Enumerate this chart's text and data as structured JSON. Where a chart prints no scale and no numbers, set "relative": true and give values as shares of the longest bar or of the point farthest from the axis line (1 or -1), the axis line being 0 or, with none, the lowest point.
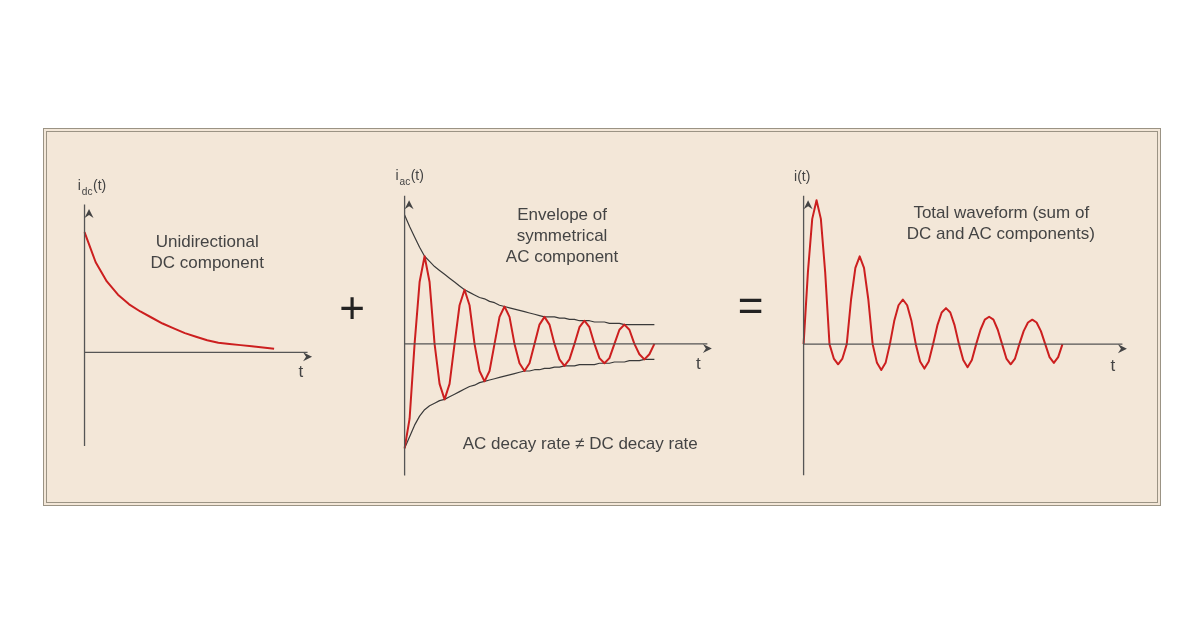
{
  "chart_data": [
    {
      "type": "line",
      "relative": true,
      "xlabel": "t",
      "ylabel": "i$_{dc}$(t)",
      "annotations": [
        "Unidirectional\nDC component",
        "+"
      ],
      "categories": [
        null,
        null,
        null,
        null,
        null,
        null,
        null,
        null,
        null,
        null,
        null,
        null,
        null,
        null,
        null,
        null,
        null,
        null
      ],
      "series": [
        {
          "color": "#cc1f1f",
          "values": [
            1.0,
            0.75,
            0.59,
            0.48,
            0.4,
            0.34,
            0.29,
            0.24,
            0.2,
            0.16,
            0.13,
            0.1,
            0.08,
            0.07,
            0.06,
            0.05,
            0.04,
            0.03
          ]
        }
      ]
    },
    {
      "type": "line",
      "relative": true,
      "xlabel": "t",
      "ylabel": "i$_{ac}$(t)",
      "annotations": [
        "Envelope of\nsymmetrical\nAC component",
        "AC decay rate ≠ DC decay rate"
      ],
      "categories": [
        null,
        null,
        null,
        null,
        null,
        null,
        null,
        null,
        null,
        null,
        null,
        null,
        null,
        null,
        null,
        null,
        null,
        null,
        null,
        null,
        null,
        null,
        null,
        null,
        null,
        null,
        null,
        null,
        null,
        null,
        null,
        null,
        null,
        null,
        null,
        null,
        null,
        null,
        null,
        null,
        null,
        null,
        null,
        null,
        null,
        null,
        null,
        null,
        null,
        null,
        null
      ],
      "series": [
        {
          "color": "#3a3a3a",
          "values": [
            1.0,
            0.91,
            0.83,
            0.75,
            0.68,
            0.64,
            0.6,
            0.57,
            0.54,
            0.51,
            0.48,
            0.45,
            0.42,
            0.4,
            0.38,
            0.36,
            0.35,
            0.33,
            0.32,
            0.3,
            0.29,
            0.28,
            0.27,
            0.26,
            0.25,
            0.24,
            0.23,
            0.22,
            0.21,
            0.21,
            0.21,
            0.2,
            0.2,
            0.19,
            0.19,
            0.18,
            0.18,
            0.18,
            0.17,
            0.17,
            0.17,
            0.16,
            0.16,
            0.16,
            0.15,
            0.15,
            0.15,
            0.15,
            0.15,
            0.15,
            0.15
          ]
        },
        {
          "color": "#3a3a3a",
          "values": [
            -0.81,
            -0.72,
            -0.63,
            -0.56,
            -0.51,
            -0.48,
            -0.46,
            -0.44,
            -0.43,
            -0.41,
            -0.39,
            -0.37,
            -0.35,
            -0.33,
            -0.32,
            -0.3,
            -0.29,
            -0.28,
            -0.27,
            -0.26,
            -0.25,
            -0.24,
            -0.23,
            -0.22,
            -0.21,
            -0.21,
            -0.2,
            -0.2,
            -0.19,
            -0.19,
            -0.18,
            -0.18,
            -0.17,
            -0.17,
            -0.17,
            -0.16,
            -0.16,
            -0.16,
            -0.16,
            -0.15,
            -0.15,
            -0.15,
            -0.14,
            -0.14,
            -0.14,
            -0.13,
            -0.13,
            -0.13,
            -0.12,
            -0.12,
            -0.12
          ]
        },
        {
          "color": "#cc1f1f",
          "values": [
            -0.81,
            -0.58,
            0,
            0.48,
            0.68,
            0.48,
            0,
            -0.31,
            -0.43,
            -0.31,
            0,
            0.3,
            0.42,
            0.3,
            0,
            -0.21,
            -0.29,
            -0.21,
            0,
            0.21,
            0.29,
            0.21,
            0,
            -0.15,
            -0.21,
            -0.15,
            0,
            0.15,
            0.21,
            0.15,
            0,
            -0.12,
            -0.17,
            -0.12,
            0,
            0.13,
            0.18,
            0.13,
            0,
            -0.11,
            -0.15,
            -0.11,
            0,
            0.11,
            0.15,
            0.11,
            0,
            -0.08,
            -0.12,
            -0.08,
            0
          ]
        }
      ]
    },
    {
      "type": "line",
      "relative": true,
      "xlabel": "t",
      "ylabel": "i(t)",
      "annotations": [
        "=",
        "Total waveform (sum of\nDC and AC components)"
      ],
      "categories": [
        null,
        null,
        null,
        null,
        null,
        null,
        null,
        null,
        null,
        null,
        null,
        null,
        null,
        null,
        null,
        null,
        null,
        null,
        null,
        null,
        null,
        null,
        null,
        null,
        null,
        null,
        null,
        null,
        null,
        null,
        null,
        null,
        null,
        null,
        null,
        null,
        null,
        null,
        null,
        null,
        null,
        null,
        null,
        null,
        null,
        null,
        null,
        null,
        null,
        null,
        null,
        null,
        null,
        null,
        null,
        null,
        null,
        null,
        null,
        null,
        null
      ],
      "series": [
        {
          "color": "#cc1f1f",
          "values": [
            0,
            0.5,
            0.87,
            1.0,
            0.87,
            0.5,
            0,
            -0.1,
            -0.14,
            -0.1,
            0,
            0.31,
            0.53,
            0.61,
            0.53,
            0.31,
            0,
            -0.13,
            -0.18,
            -0.13,
            0,
            0.16,
            0.27,
            0.31,
            0.27,
            0.16,
            0,
            -0.12,
            -0.17,
            -0.12,
            0,
            0.13,
            0.22,
            0.25,
            0.22,
            0.13,
            0,
            -0.11,
            -0.16,
            -0.11,
            0,
            0.1,
            0.17,
            0.19,
            0.17,
            0.1,
            0,
            -0.1,
            -0.14,
            -0.1,
            0,
            0.09,
            0.15,
            0.17,
            0.15,
            0.09,
            0,
            -0.09,
            -0.13,
            -0.09,
            0
          ]
        }
      ]
    }
  ]
}
